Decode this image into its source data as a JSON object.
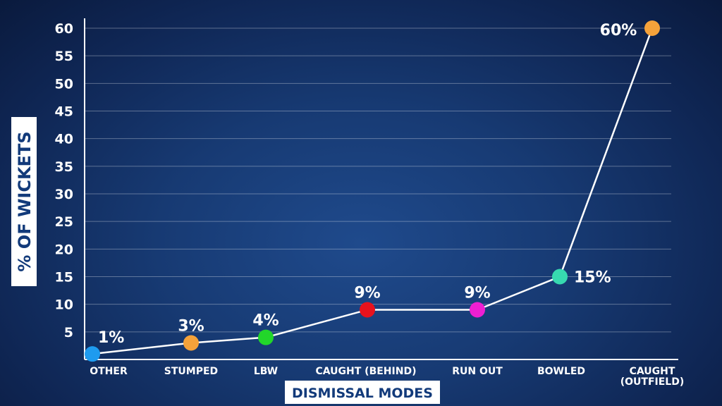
{
  "chart_data": {
    "type": "line",
    "title": "",
    "xlabel": "DISMISSAL MODES",
    "ylabel": "% OF WICKETS",
    "ylim": [
      0,
      60
    ],
    "yticks": [
      5,
      10,
      15,
      20,
      25,
      30,
      35,
      40,
      45,
      50,
      55,
      60
    ],
    "grid": true,
    "categories": [
      "OTHER",
      "STUMPED",
      "LBW",
      "CAUGHT (BEHIND)",
      "RUN OUT",
      "BOWLED",
      "CAUGHT (OUTFIELD)"
    ],
    "category_labels": [
      [
        "OTHER"
      ],
      [
        "STUMPED"
      ],
      [
        "LBW"
      ],
      [
        "CAUGHT (BEHIND)"
      ],
      [
        "RUN OUT"
      ],
      [
        "BOWLED"
      ],
      [
        "CAUGHT",
        "(OUTFIELD)"
      ]
    ],
    "values": [
      1,
      3,
      4,
      9,
      9,
      15,
      60
    ],
    "data_labels": [
      "1%",
      "3%",
      "4%",
      "9%",
      "9%",
      "15%",
      "60%"
    ],
    "point_colors": [
      "#1e9bef",
      "#f5a23a",
      "#22d62a",
      "#e8121d",
      "#ee1fd2",
      "#37d9b0",
      "#f5a23a"
    ],
    "line_color": "#ffffff"
  }
}
